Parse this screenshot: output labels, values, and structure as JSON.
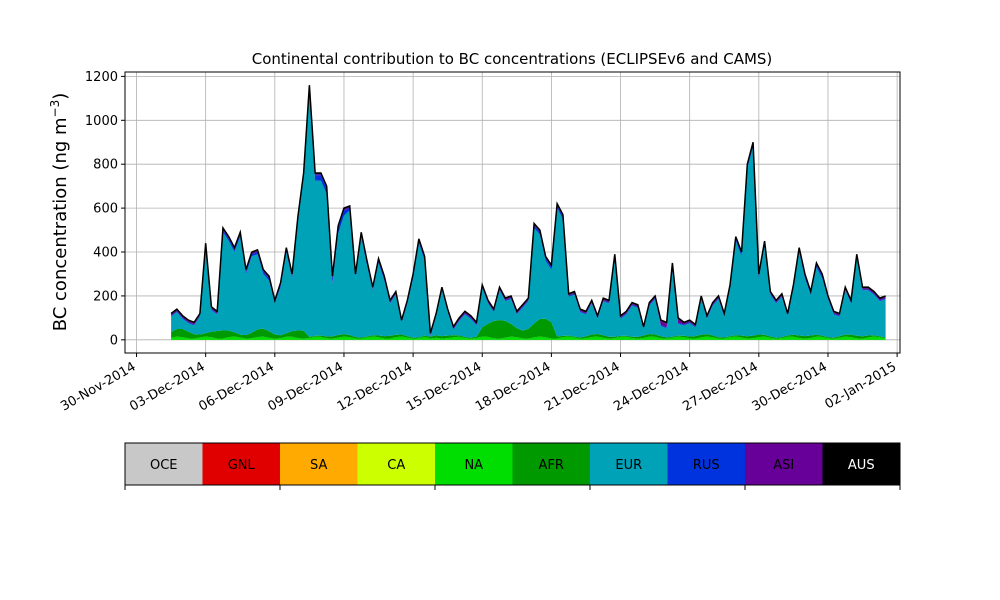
{
  "chart_data": {
    "type": "area",
    "title": "Continental contribution to BC concentrations (ECLIPSEv6 and CAMS)",
    "ylabel_main": "BC concentration (ng m",
    "ylabel_sup": "−3",
    "ylabel_close": ")",
    "xlabel": "",
    "grid": true,
    "xlim": [
      "2014-11-29T12:00",
      "2015-01-02T03:00"
    ],
    "ylim": [
      -60,
      1220
    ],
    "yticks": [
      0,
      200,
      400,
      600,
      800,
      1000,
      1200
    ],
    "xticks": [
      "2014-11-30",
      "2014-12-03",
      "2014-12-06",
      "2014-12-09",
      "2014-12-12",
      "2014-12-15",
      "2014-12-18",
      "2014-12-21",
      "2014-12-24",
      "2014-12-27",
      "2014-12-30",
      "2015-01-02"
    ],
    "xtick_labels": [
      "30-Nov-2014",
      "03-Dec-2014",
      "06-Dec-2014",
      "09-Dec-2014",
      "12-Dec-2014",
      "15-Dec-2014",
      "18-Dec-2014",
      "21-Dec-2014",
      "24-Dec-2014",
      "27-Dec-2014",
      "30-Dec-2014",
      "02-Jan-2015"
    ],
    "legend_placement": "colorbar-below",
    "categories": [
      "OCE",
      "GNL",
      "SA",
      "CA",
      "NA",
      "AFR",
      "EUR",
      "RUS",
      "ASI",
      "AUS"
    ],
    "colors": [
      "#c8c8c8",
      "#e00000",
      "#ffaa00",
      "#ccff00",
      "#00dd00",
      "#009900",
      "#00a2b8",
      "#0033dd",
      "#660099",
      "#000000"
    ],
    "colorbar_ticks": [
      "OCE",
      "SA",
      "NA",
      "EUR",
      "ASI",
      "AUS"
    ],
    "total_series": {
      "x": [
        "2014-12-01T12:00",
        "2014-12-01T18:00",
        "2014-12-02T00:00",
        "2014-12-02T06:00",
        "2014-12-02T12:00",
        "2014-12-02T18:00",
        "2014-12-03T00:00",
        "2014-12-03T06:00",
        "2014-12-03T12:00",
        "2014-12-03T18:00",
        "2014-12-04T00:00",
        "2014-12-04T06:00",
        "2014-12-04T12:00",
        "2014-12-04T18:00",
        "2014-12-05T00:00",
        "2014-12-05T06:00",
        "2014-12-05T12:00",
        "2014-12-05T18:00",
        "2014-12-06T00:00",
        "2014-12-06T06:00",
        "2014-12-06T12:00",
        "2014-12-06T18:00",
        "2014-12-07T00:00",
        "2014-12-07T06:00",
        "2014-12-07T12:00",
        "2014-12-07T18:00",
        "2014-12-08T00:00",
        "2014-12-08T06:00",
        "2014-12-08T12:00",
        "2014-12-08T18:00",
        "2014-12-09T00:00",
        "2014-12-09T06:00",
        "2014-12-09T12:00",
        "2014-12-09T18:00",
        "2014-12-10T00:00",
        "2014-12-10T06:00",
        "2014-12-10T12:00",
        "2014-12-10T18:00",
        "2014-12-11T00:00",
        "2014-12-11T06:00",
        "2014-12-11T12:00",
        "2014-12-11T18:00",
        "2014-12-12T00:00",
        "2014-12-12T06:00",
        "2014-12-12T12:00",
        "2014-12-12T18:00",
        "2014-12-13T00:00",
        "2014-12-13T06:00",
        "2014-12-13T12:00",
        "2014-12-13T18:00",
        "2014-12-14T00:00",
        "2014-12-14T06:00",
        "2014-12-14T12:00",
        "2014-12-14T18:00",
        "2014-12-15T00:00",
        "2014-12-15T06:00",
        "2014-12-15T12:00",
        "2014-12-15T18:00",
        "2014-12-16T00:00",
        "2014-12-16T06:00",
        "2014-12-16T12:00",
        "2014-12-16T18:00",
        "2014-12-17T00:00",
        "2014-12-17T06:00",
        "2014-12-17T12:00",
        "2014-12-17T18:00",
        "2014-12-18T00:00",
        "2014-12-18T06:00",
        "2014-12-18T12:00",
        "2014-12-18T18:00",
        "2014-12-19T00:00",
        "2014-12-19T06:00",
        "2014-12-19T12:00",
        "2014-12-19T18:00",
        "2014-12-20T00:00",
        "2014-12-20T06:00",
        "2014-12-20T12:00",
        "2014-12-20T18:00",
        "2014-12-21T00:00",
        "2014-12-21T06:00",
        "2014-12-21T12:00",
        "2014-12-21T18:00",
        "2014-12-22T00:00",
        "2014-12-22T06:00",
        "2014-12-22T12:00",
        "2014-12-22T18:00",
        "2014-12-23T00:00",
        "2014-12-23T06:00",
        "2014-12-23T12:00",
        "2014-12-23T18:00",
        "2014-12-24T00:00",
        "2014-12-24T06:00",
        "2014-12-24T12:00",
        "2014-12-24T18:00",
        "2014-12-25T00:00",
        "2014-12-25T06:00",
        "2014-12-25T12:00",
        "2014-12-25T18:00",
        "2014-12-26T00:00",
        "2014-12-26T06:00",
        "2014-12-26T12:00",
        "2014-12-26T18:00",
        "2014-12-27T00:00",
        "2014-12-27T06:00",
        "2014-12-27T12:00",
        "2014-12-27T18:00",
        "2014-12-28T00:00",
        "2014-12-28T06:00",
        "2014-12-28T12:00",
        "2014-12-28T18:00",
        "2014-12-29T00:00",
        "2014-12-29T06:00",
        "2014-12-29T12:00",
        "2014-12-29T18:00",
        "2014-12-30T00:00",
        "2014-12-30T06:00",
        "2014-12-30T12:00",
        "2014-12-30T18:00",
        "2014-12-31T00:00",
        "2014-12-31T06:00",
        "2014-12-31T12:00",
        "2014-12-31T18:00",
        "2015-01-01T00:00",
        "2015-01-01T06:00",
        "2015-01-01T12:00"
      ],
      "y": [
        120,
        140,
        110,
        90,
        80,
        120,
        440,
        150,
        130,
        510,
        470,
        420,
        490,
        320,
        400,
        410,
        320,
        290,
        180,
        260,
        420,
        300,
        560,
        760,
        1160,
        760,
        760,
        700,
        290,
        520,
        600,
        610,
        300,
        490,
        360,
        240,
        370,
        290,
        180,
        220,
        90,
        180,
        300,
        460,
        380,
        30,
        120,
        240,
        140,
        60,
        100,
        130,
        110,
        80,
        250,
        180,
        140,
        240,
        190,
        200,
        130,
        160,
        190,
        530,
        500,
        380,
        340,
        620,
        570,
        210,
        220,
        140,
        130,
        180,
        110,
        190,
        180,
        390,
        110,
        130,
        170,
        160,
        60,
        170,
        200,
        90,
        80,
        350,
        100,
        80,
        90,
        70,
        200,
        110,
        170,
        200,
        120,
        250,
        470,
        400,
        800,
        900,
        300,
        450,
        220,
        180,
        210,
        120,
        250,
        420,
        300,
        220,
        350,
        300,
        200,
        130,
        120,
        240,
        180,
        390,
        240,
        240,
        220,
        190,
        200
      ]
    }
  }
}
